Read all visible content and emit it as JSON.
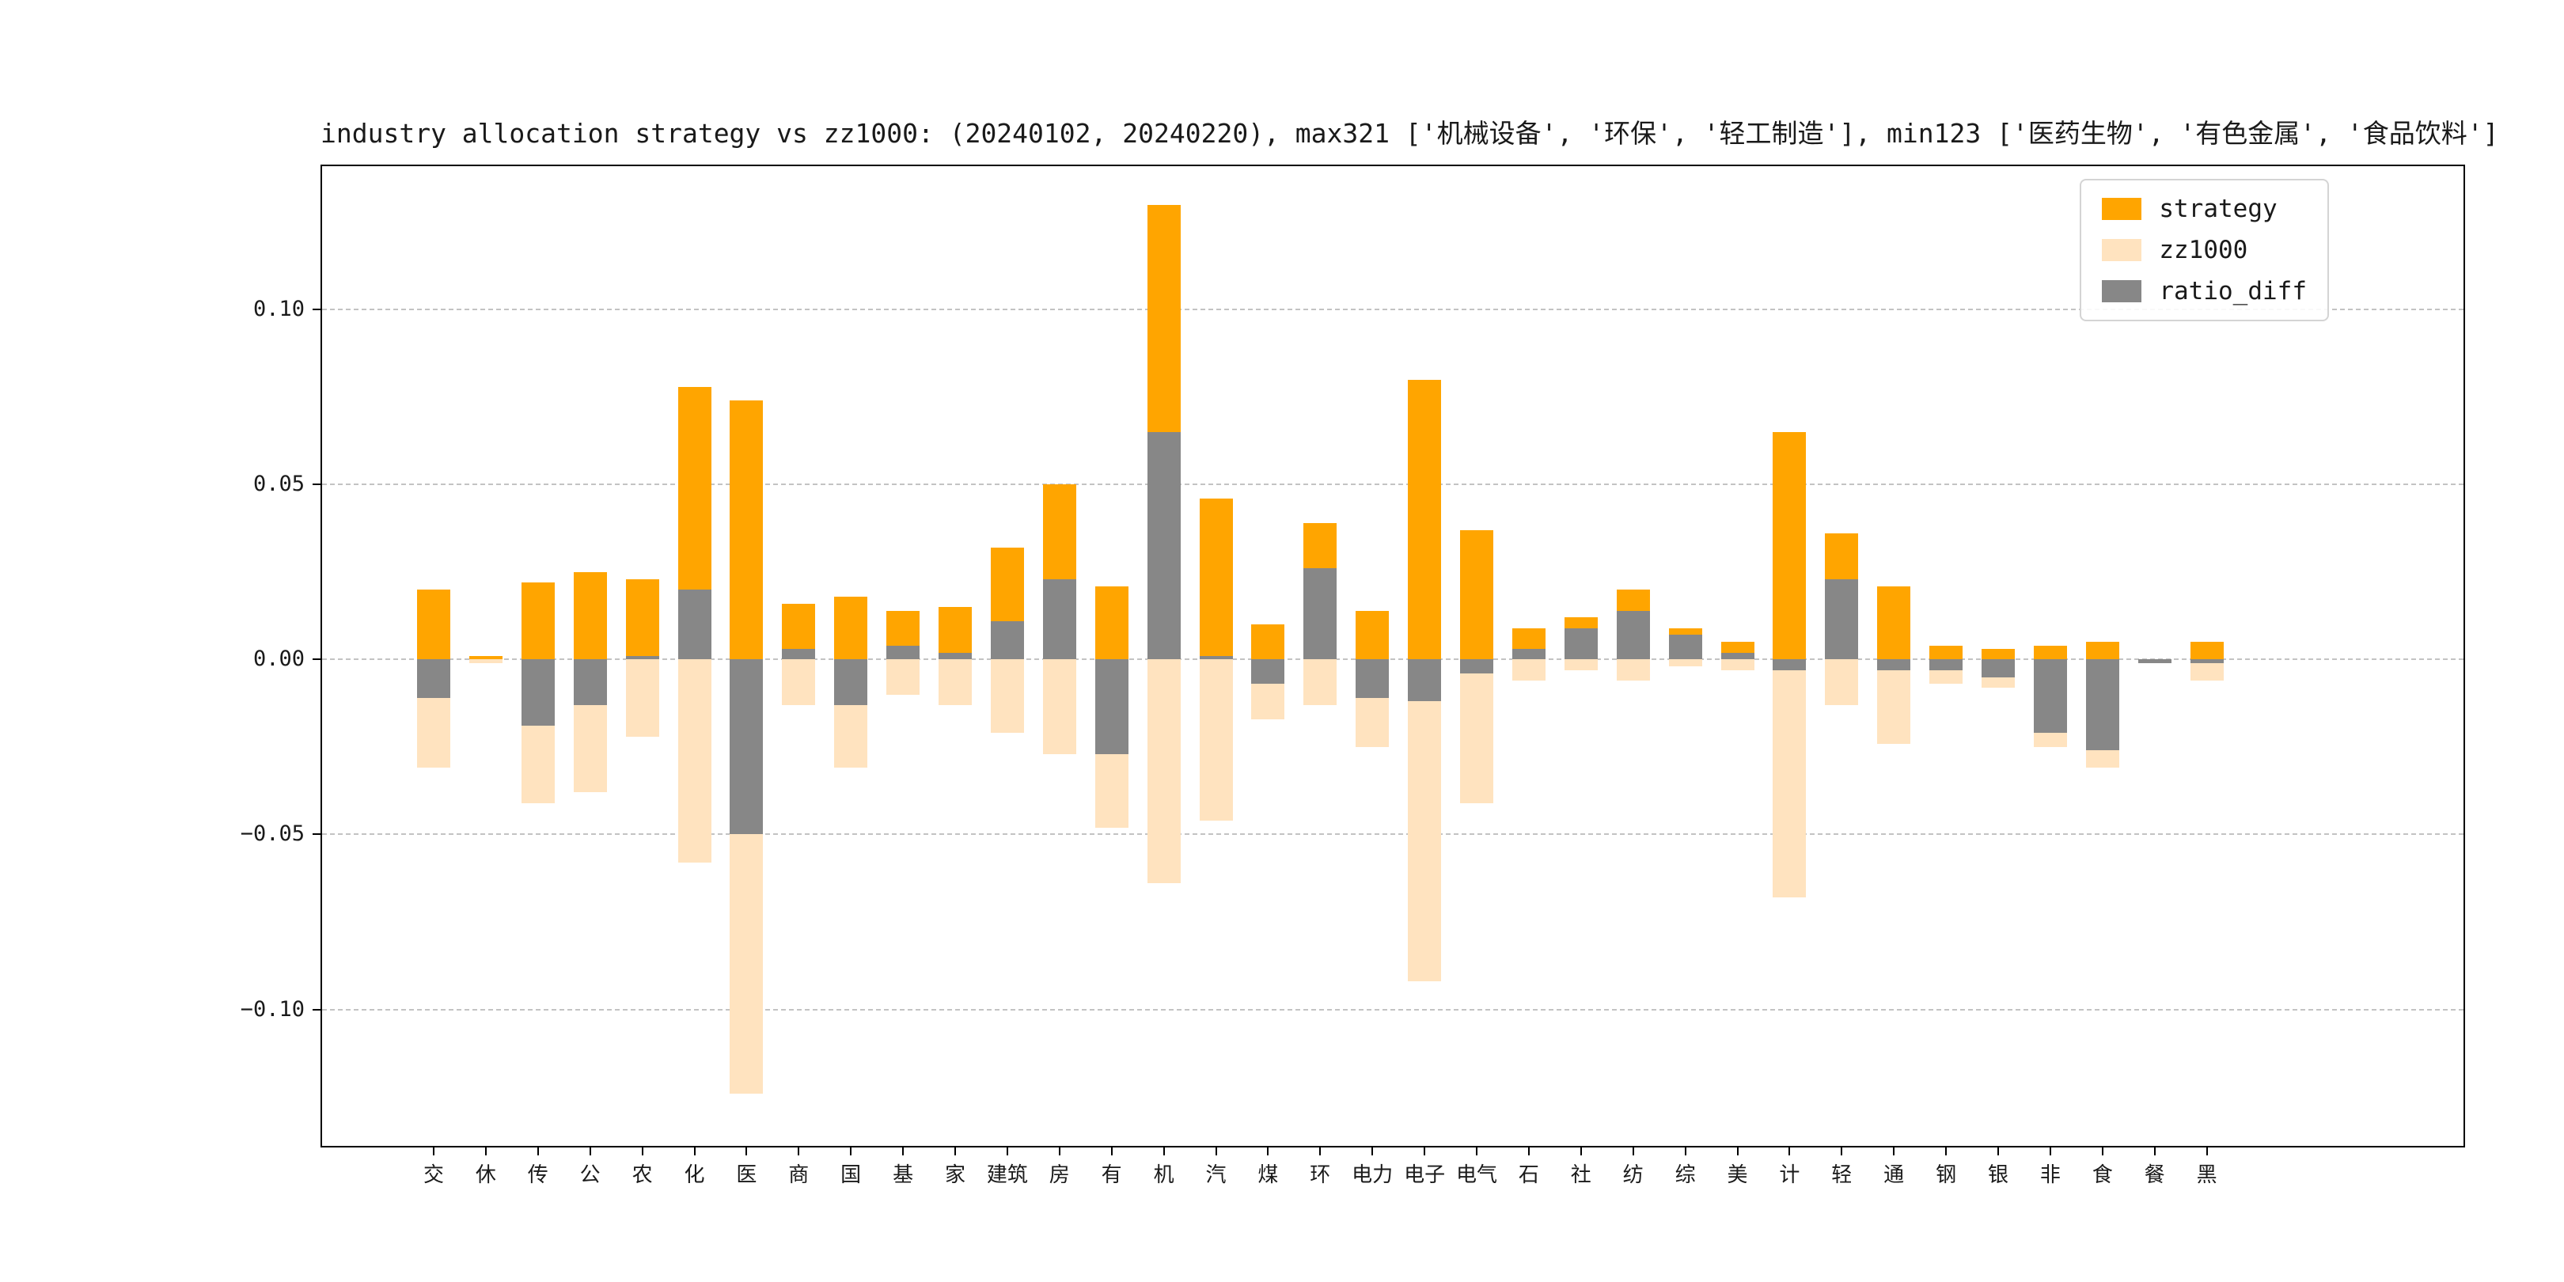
{
  "title": "industry allocation strategy vs zz1000: (20240102, 20240220), max321 ['机械设备', '环保', '轻工制造'], min123 ['医药生物', '有色金属', '食品饮料']",
  "colors": {
    "strategy": "#FFA500",
    "zz1000": "#FFE3BF",
    "ratio_diff": "#878787",
    "grid": "#C3C3C3",
    "axis": "#000000"
  },
  "chart_data": {
    "type": "bar",
    "title": "industry allocation strategy vs zz1000: (20240102, 20240220), max321 ['机械设备', '环保', '轻工制造'], min123 ['医药生物', '有色金属', '食品饮料']",
    "categories": [
      "交",
      "休",
      "传",
      "公",
      "农",
      "化",
      "医",
      "商",
      "国",
      "基",
      "家",
      "建筑",
      "房",
      "有",
      "机",
      "汽",
      "煤",
      "环",
      "电力",
      "电子",
      "电气",
      "石",
      "社",
      "纺",
      "综",
      "美",
      "计",
      "轻",
      "通",
      "钢",
      "银",
      "非",
      "食",
      "餐",
      "黑"
    ],
    "series": [
      {
        "name": "strategy",
        "color": "#FFA500",
        "values": [
          0.02,
          0.001,
          0.022,
          0.025,
          0.023,
          0.078,
          0.074,
          0.016,
          0.018,
          0.014,
          0.015,
          0.032,
          0.05,
          0.021,
          0.13,
          0.046,
          0.01,
          0.039,
          0.014,
          0.08,
          0.037,
          0.009,
          0.012,
          0.02,
          0.009,
          0.005,
          0.065,
          0.036,
          0.021,
          0.004,
          0.003,
          0.004,
          0.005,
          0.0,
          0.005
        ]
      },
      {
        "name": "zz1000",
        "color": "#FFE3BF",
        "values": [
          -0.031,
          -0.001,
          -0.041,
          -0.038,
          -0.022,
          -0.058,
          -0.124,
          -0.013,
          -0.031,
          -0.01,
          -0.013,
          -0.021,
          -0.027,
          -0.048,
          -0.064,
          -0.046,
          -0.017,
          -0.013,
          -0.025,
          -0.092,
          -0.041,
          -0.006,
          -0.003,
          -0.006,
          -0.002,
          -0.003,
          -0.068,
          -0.013,
          -0.024,
          -0.007,
          -0.008,
          -0.025,
          -0.031,
          -0.001,
          -0.006
        ]
      },
      {
        "name": "ratio_diff",
        "color": "#878787",
        "values": [
          -0.011,
          0.0,
          -0.019,
          -0.013,
          0.001,
          0.02,
          -0.05,
          0.003,
          -0.013,
          0.004,
          0.002,
          0.011,
          0.023,
          -0.027,
          0.065,
          0.001,
          -0.007,
          0.026,
          -0.011,
          -0.012,
          -0.004,
          0.003,
          0.009,
          0.014,
          0.007,
          0.002,
          -0.003,
          0.023,
          -0.003,
          -0.003,
          -0.005,
          -0.021,
          -0.026,
          -0.001,
          -0.001
        ]
      }
    ],
    "yticks": [
      0.1,
      0.05,
      0.0,
      -0.05,
      -0.1
    ],
    "ylim": [
      -0.139,
      0.141
    ],
    "xlabel": "",
    "ylabel": "",
    "grid": "horizontal dashed",
    "legend_position": "upper right"
  }
}
